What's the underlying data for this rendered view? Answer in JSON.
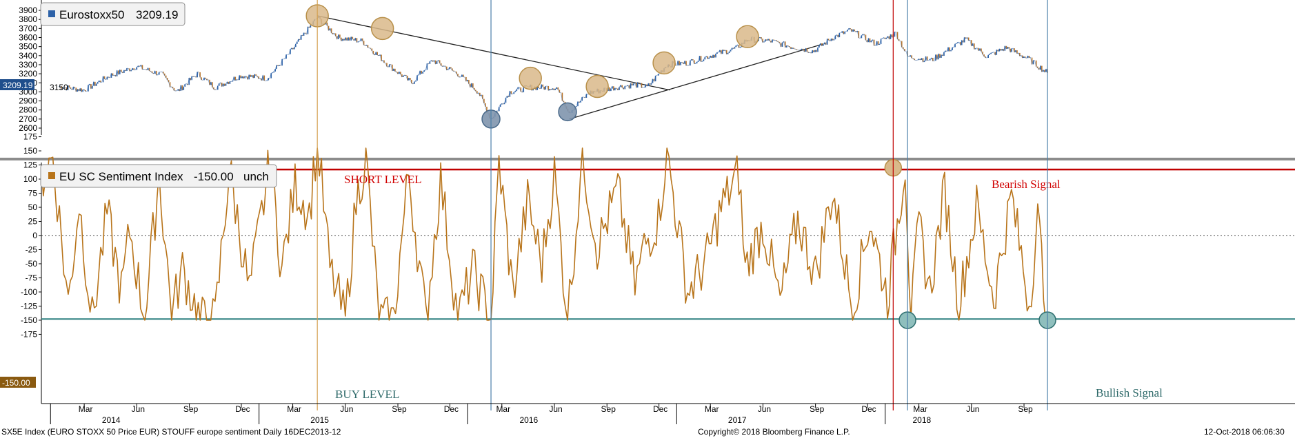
{
  "chart_data": [
    {
      "type": "line",
      "title": "",
      "legend": {
        "name": "Eurostoxx50",
        "value": "3209.19",
        "placement": "top-left"
      },
      "ylim": [
        2550,
        3950
      ],
      "yticks": [
        2600,
        2700,
        2800,
        2900,
        3000,
        3100,
        3200,
        3300,
        3400,
        3500,
        3600,
        3700,
        3800,
        3900
      ],
      "last_value_tag": "3209.19",
      "inline_labels": [
        "3150"
      ],
      "x": [
        "2014-01-15",
        "2014-03-01",
        "2014-04-15",
        "2014-06-01",
        "2014-07-15",
        "2014-08-10",
        "2014-09-15",
        "2014-10-16",
        "2014-11-30",
        "2015-01-15",
        "2015-02-20",
        "2015-04-13",
        "2015-05-20",
        "2015-07-01",
        "2015-08-15",
        "2015-09-25",
        "2015-11-01",
        "2015-12-15",
        "2016-01-20",
        "2016-02-11",
        "2016-03-15",
        "2016-04-20",
        "2016-06-05",
        "2016-06-27",
        "2016-08-01",
        "2016-09-15",
        "2016-10-20",
        "2016-11-10",
        "2016-12-15",
        "2017-01-20",
        "2017-03-01",
        "2017-04-15",
        "2017-05-05",
        "2017-06-15",
        "2017-07-20",
        "2017-08-29",
        "2017-10-01",
        "2017-11-01",
        "2017-12-15",
        "2018-01-20",
        "2018-02-09",
        "2018-03-23",
        "2018-05-01",
        "2018-05-22",
        "2018-06-28",
        "2018-08-01",
        "2018-09-10",
        "2018-10-12"
      ],
      "values": [
        3060,
        3020,
        3180,
        3280,
        3190,
        3000,
        3200,
        3050,
        3180,
        3150,
        3400,
        3820,
        3600,
        3560,
        3300,
        3100,
        3350,
        3200,
        3000,
        2700,
        3000,
        3050,
        3050,
        2780,
        2990,
        3050,
        3080,
        3050,
        3300,
        3320,
        3400,
        3480,
        3580,
        3560,
        3500,
        3450,
        3600,
        3680,
        3530,
        3650,
        3390,
        3350,
        3500,
        3580,
        3390,
        3490,
        3360,
        3209.19
      ],
      "circled_highs": [
        "2015-04-13",
        "2015-08-05",
        "2016-04-20",
        "2016-08-15",
        "2016-12-10",
        "2017-05-05"
      ],
      "circled_lows": [
        "2016-02-11",
        "2016-06-24"
      ],
      "trendlines": [
        {
          "from": [
            "2015-04-13",
            3840
          ],
          "to": [
            "2016-12-20",
            3020
          ]
        },
        {
          "from": [
            "2016-06-27",
            2700
          ],
          "to": [
            "2017-09-15",
            3530
          ]
        }
      ]
    },
    {
      "type": "line",
      "title": "",
      "legend": {
        "name": "EU SC Sentiment Index",
        "value": "-150.00",
        "change": "unch",
        "placement": "top-left"
      },
      "ylim": [
        -182,
        180
      ],
      "yticks": [
        -175,
        -150,
        -125,
        -100,
        -75,
        -50,
        -25,
        0,
        25,
        50,
        75,
        100,
        125,
        150,
        175
      ],
      "last_value_tag": "-150.00",
      "x": [
        "2013-12-16",
        "2014-01-05",
        "2014-02-01",
        "2014-02-20",
        "2014-03-15",
        "2014-04-10",
        "2014-05-05",
        "2014-05-20",
        "2014-06-15",
        "2014-07-10",
        "2014-08-01",
        "2014-08-20",
        "2014-09-20",
        "2014-10-16",
        "2014-11-10",
        "2014-12-15",
        "2015-01-20",
        "2015-02-10",
        "2015-03-05",
        "2015-03-30",
        "2015-04-13",
        "2015-05-05",
        "2015-06-01",
        "2015-06-20",
        "2015-07-07",
        "2015-07-30",
        "2015-08-24",
        "2015-09-20",
        "2015-10-20",
        "2015-11-15",
        "2015-12-15",
        "2016-01-10",
        "2016-02-11",
        "2016-02-25",
        "2016-03-20",
        "2016-04-15",
        "2016-05-10",
        "2016-06-01",
        "2016-06-24",
        "2016-07-20",
        "2016-08-15",
        "2016-09-20",
        "2016-10-20",
        "2016-11-05",
        "2016-11-30",
        "2016-12-15",
        "2017-01-20",
        "2017-02-20",
        "2017-03-20",
        "2017-04-20",
        "2017-05-01",
        "2017-06-01",
        "2017-07-01",
        "2017-08-01",
        "2017-09-01",
        "2017-10-01",
        "2017-11-05",
        "2017-12-05",
        "2018-01-05",
        "2018-02-05",
        "2018-02-15",
        "2018-03-01",
        "2018-03-20",
        "2018-04-15",
        "2018-05-10",
        "2018-06-10",
        "2018-07-10",
        "2018-08-10",
        "2018-09-10",
        "2018-09-25",
        "2018-10-12"
      ],
      "values": [
        100,
        140,
        -120,
        60,
        -150,
        40,
        -100,
        10,
        -150,
        110,
        -140,
        -60,
        -150,
        -150,
        120,
        -100,
        130,
        -60,
        90,
        40,
        170,
        -60,
        -150,
        60,
        140,
        -150,
        -150,
        110,
        -150,
        100,
        -150,
        -60,
        -150,
        130,
        -100,
        60,
        -50,
        110,
        -150,
        140,
        -20,
        80,
        -90,
        -20,
        30,
        150,
        -100,
        -50,
        50,
        110,
        -60,
        20,
        -120,
        30,
        -70,
        80,
        -130,
        30,
        -110,
        130,
        -150,
        20,
        -100,
        80,
        -120,
        50,
        -110,
        70,
        -120,
        30,
        -150
      ],
      "annotations": [
        {
          "text": "SHORT LEVEL",
          "level": 117
        },
        {
          "text": "BUY LEVEL",
          "level": -148
        },
        {
          "text": "Bearish Signal",
          "date": "2018-01-15",
          "value": 120
        },
        {
          "text": "Bullish Signal",
          "date": "2018-02-09",
          "value": -150
        },
        {
          "text": "Bullish Signal",
          "date": "2018-10-12",
          "value": -150
        }
      ],
      "thresholds": [
        {
          "name": "short",
          "value": 117,
          "color": "#c00000"
        },
        {
          "name": "buy",
          "value": -148,
          "color": "#2f8080"
        }
      ],
      "zero_line": "dotted",
      "vertical_markers": [
        {
          "date": "2015-04-13",
          "color": "#d4a050"
        },
        {
          "date": "2016-02-11",
          "color": "#4a7ea8"
        },
        {
          "date": "2018-01-15",
          "color": "#c00000"
        },
        {
          "date": "2018-02-09",
          "color": "#4a7ea8"
        },
        {
          "date": "2018-10-12",
          "color": "#4a7ea8"
        }
      ]
    }
  ],
  "x_axis": {
    "months": [
      {
        "label": "Mar",
        "date": "2014-03-01"
      },
      {
        "label": "Jun",
        "date": "2014-06-01"
      },
      {
        "label": "Sep",
        "date": "2014-09-01"
      },
      {
        "label": "Dec",
        "date": "2014-12-01"
      },
      {
        "label": "Mar",
        "date": "2015-03-01"
      },
      {
        "label": "Jun",
        "date": "2015-06-01"
      },
      {
        "label": "Sep",
        "date": "2015-09-01"
      },
      {
        "label": "Dec",
        "date": "2015-12-01"
      },
      {
        "label": "Mar",
        "date": "2016-03-01"
      },
      {
        "label": "Jun",
        "date": "2016-06-01"
      },
      {
        "label": "Sep",
        "date": "2016-09-01"
      },
      {
        "label": "Dec",
        "date": "2016-12-01"
      },
      {
        "label": "Mar",
        "date": "2017-03-01"
      },
      {
        "label": "Jun",
        "date": "2017-06-01"
      },
      {
        "label": "Sep",
        "date": "2017-09-01"
      },
      {
        "label": "Dec",
        "date": "2017-12-01"
      },
      {
        "label": "Mar",
        "date": "2018-03-01"
      },
      {
        "label": "Jun",
        "date": "2018-06-01"
      },
      {
        "label": "Sep",
        "date": "2018-09-01"
      }
    ],
    "years": [
      {
        "label": "2014",
        "date": "2014-07-01"
      },
      {
        "label": "2015",
        "date": "2015-07-01"
      },
      {
        "label": "2016",
        "date": "2016-07-01"
      },
      {
        "label": "2017",
        "date": "2017-07-01"
      },
      {
        "label": "2018",
        "date": "2018-05-20"
      }
    ]
  },
  "footer": {
    "left": "SX5E Index (EURO STOXX 50 Price EUR) STOUFF europe sentiment  Daily 16DEC2013-12",
    "center": "Copyright© 2018 Bloomberg Finance L.P.",
    "right": "12-Oct-2018 06:06:30"
  },
  "colors": {
    "price_line": "#2d62a8",
    "price_down": "#b8742a",
    "sentiment_line": "#b8741a",
    "short_line": "#c00000",
    "buy_line": "#2f8080",
    "tag_price": "#1f4e8c",
    "tag_sentiment": "#8a5a10",
    "circle_high": "#d9b98a",
    "circle_low": "#7f95ad",
    "circle_bull": "#8fbfbd"
  }
}
